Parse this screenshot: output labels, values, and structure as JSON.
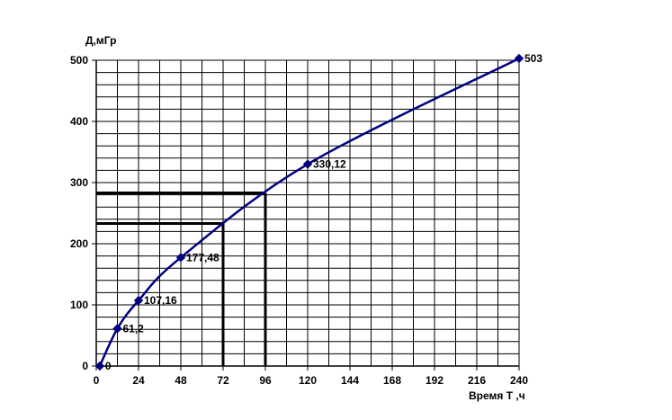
{
  "chart_data": {
    "type": "line",
    "title": "",
    "ylabel": "Д,мГр",
    "xlabel": "Время Т ,ч",
    "xlim": [
      0,
      240
    ],
    "ylim": [
      0,
      500
    ],
    "x_ticks": [
      0,
      24,
      48,
      72,
      96,
      120,
      144,
      168,
      192,
      216,
      240
    ],
    "y_ticks": [
      0,
      100,
      200,
      300,
      400,
      500
    ],
    "grid": true,
    "x_minor_step": 12,
    "y_minor_step": 20,
    "legend": "none",
    "series": [
      {
        "color": "#000080",
        "points": [
          {
            "x": 2,
            "y": 0,
            "label": "0"
          },
          {
            "x": 12,
            "y": 61.2,
            "label": "61,2"
          },
          {
            "x": 24,
            "y": 107.16,
            "label": "107,16"
          },
          {
            "x": 48,
            "y": 177.48,
            "label": "177,48"
          },
          {
            "x": 120,
            "y": 330.12,
            "label": "330,12"
          },
          {
            "x": 240,
            "y": 503,
            "label": "503"
          }
        ]
      }
    ],
    "guide_lines": [
      {
        "x": 72,
        "y": 233
      },
      {
        "x": 96,
        "y": 283
      }
    ]
  }
}
